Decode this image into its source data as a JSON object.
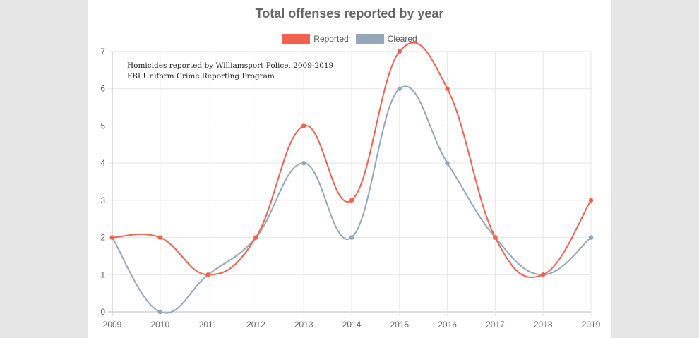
{
  "chart_data": {
    "type": "line",
    "title": "Total offenses reported by year",
    "xlabel": "",
    "ylabel": "",
    "categories": [
      "2009",
      "2010",
      "2011",
      "2012",
      "2013",
      "2014",
      "2015",
      "2016",
      "2017",
      "2018",
      "2019"
    ],
    "series": [
      {
        "name": "Reported",
        "color": "#f2604e",
        "values": [
          2,
          2,
          1,
          2,
          5,
          3,
          7,
          6,
          2,
          1,
          3
        ]
      },
      {
        "name": "Cleared",
        "color": "#93a6ba",
        "values": [
          2,
          0,
          1,
          2,
          4,
          2,
          6,
          4,
          2,
          1,
          2
        ]
      }
    ],
    "ylim": [
      0,
      7
    ],
    "yticks": [
      0,
      1,
      2,
      3,
      4,
      5,
      6,
      7
    ],
    "grid": true,
    "legend_position": "top-center",
    "annotation_lines": [
      "Homicides reported by Williamsport Police, 2009-2019",
      "FBI Uniform Crime Reporting Program"
    ]
  }
}
